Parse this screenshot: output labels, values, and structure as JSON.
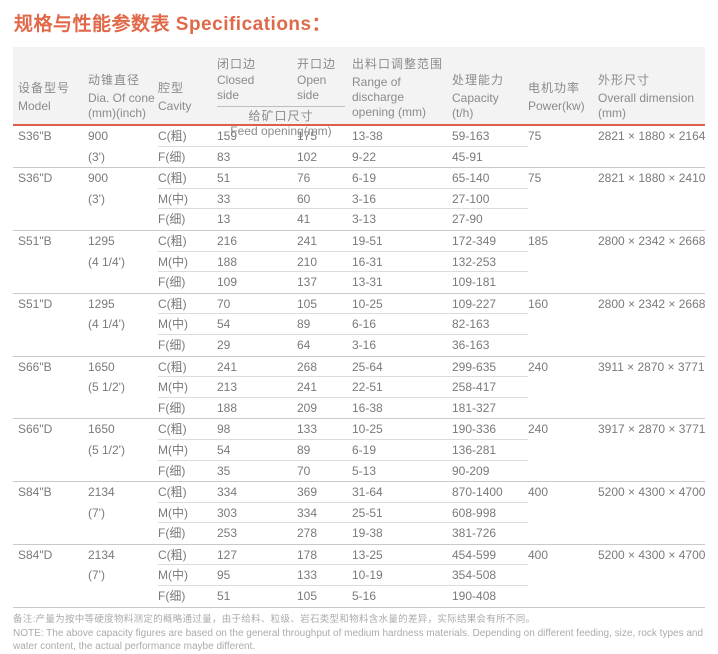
{
  "page": {
    "title": "规格与性能参数表 Specifications："
  },
  "colors": {
    "accent_orange": "#E0694A",
    "header_rule_orange": "#DC5F49",
    "header_bg": "#F3F3F3",
    "body_text": "#7A7A7A",
    "header_text": "#8B8B8B",
    "note_text": "#ABABAB"
  },
  "table": {
    "header": {
      "model_zh": "设备型号",
      "model_en": "Model",
      "cone_zh": "动锥直径",
      "cone_en": "Dia. Of cone (mm)(inch)",
      "cavity_zh": "腔型",
      "cavity_en": "Cavity",
      "closed_zh": "闭口边",
      "closed_en": "Closed side",
      "open_zh": "开口边",
      "open_en": "Open side",
      "feed_zh": "给矿口尺寸",
      "feed_en": "Feed opening(mm)",
      "discharge_zh": "出料口调整范围",
      "discharge_en": "Range of discharge opening (mm)",
      "capacity_zh": "处理能力",
      "capacity_en": "Capacity (t/h)",
      "power_zh": "电机功率",
      "power_en": "Power(kw)",
      "dimension_zh": "外形尺寸",
      "dimension_en": "Overall dimension (mm)"
    },
    "groups": [
      {
        "model": "S36\"B",
        "cone_mm": "900",
        "cone_inch": "(3')",
        "power": "75",
        "dimension": "2821 × 1880 × 2164",
        "rows": [
          {
            "cavity": "C(粗)",
            "closed": "159",
            "open": "175",
            "range": "13-38",
            "capacity": "59-163"
          },
          {
            "cavity": "F(细)",
            "closed": "83",
            "open": "102",
            "range": "9-22",
            "capacity": "45-91"
          }
        ]
      },
      {
        "model": "S36\"D",
        "cone_mm": "900",
        "cone_inch": "(3')",
        "power": "75",
        "dimension": "2821 × 1880 × 2410",
        "rows": [
          {
            "cavity": "C(粗)",
            "closed": "51",
            "open": "76",
            "range": "6-19",
            "capacity": "65-140"
          },
          {
            "cavity": "M(中)",
            "closed": "33",
            "open": "60",
            "range": "3-16",
            "capacity": "27-100"
          },
          {
            "cavity": "F(细)",
            "closed": "13",
            "open": "41",
            "range": "3-13",
            "capacity": "27-90"
          }
        ]
      },
      {
        "model": "S51\"B",
        "cone_mm": "1295",
        "cone_inch": "(4 1/4')",
        "power": "185",
        "dimension": "2800 × 2342 × 2668",
        "rows": [
          {
            "cavity": "C(粗)",
            "closed": "216",
            "open": "241",
            "range": "19-51",
            "capacity": "172-349"
          },
          {
            "cavity": "M(中)",
            "closed": "188",
            "open": "210",
            "range": "16-31",
            "capacity": "132-253"
          },
          {
            "cavity": "F(细)",
            "closed": "109",
            "open": "137",
            "range": "13-31",
            "capacity": "109-181"
          }
        ]
      },
      {
        "model": "S51\"D",
        "cone_mm": "1295",
        "cone_inch": "(4 1/4')",
        "power": "160",
        "dimension": "2800 × 2342 × 2668",
        "rows": [
          {
            "cavity": "C(粗)",
            "closed": "70",
            "open": "105",
            "range": "10-25",
            "capacity": "109-227"
          },
          {
            "cavity": "M(中)",
            "closed": "54",
            "open": "89",
            "range": "6-16",
            "capacity": "82-163"
          },
          {
            "cavity": "F(细)",
            "closed": "29",
            "open": "64",
            "range": "3-16",
            "capacity": "36-163"
          }
        ]
      },
      {
        "model": "S66\"B",
        "cone_mm": "1650",
        "cone_inch": "(5 1/2')",
        "power": "240",
        "dimension": "3911 × 2870 × 3771",
        "rows": [
          {
            "cavity": "C(粗)",
            "closed": "241",
            "open": "268",
            "range": "25-64",
            "capacity": "299-635"
          },
          {
            "cavity": "M(中)",
            "closed": "213",
            "open": "241",
            "range": "22-51",
            "capacity": "258-417"
          },
          {
            "cavity": "F(细)",
            "closed": "188",
            "open": "209",
            "range": "16-38",
            "capacity": "181-327"
          }
        ]
      },
      {
        "model": "S66\"D",
        "cone_mm": "1650",
        "cone_inch": "(5 1/2')",
        "power": "240",
        "dimension": "3917 × 2870 × 3771",
        "rows": [
          {
            "cavity": "C(粗)",
            "closed": "98",
            "open": "133",
            "range": "10-25",
            "capacity": "190-336"
          },
          {
            "cavity": "M(中)",
            "closed": "54",
            "open": "89",
            "range": "6-19",
            "capacity": "136-281"
          },
          {
            "cavity": "F(细)",
            "closed": "35",
            "open": "70",
            "range": "5-13",
            "capacity": "90-209"
          }
        ]
      },
      {
        "model": "S84\"B",
        "cone_mm": "2134",
        "cone_inch": "(7')",
        "power": "400",
        "dimension": "5200 × 4300 × 4700",
        "rows": [
          {
            "cavity": "C(粗)",
            "closed": "334",
            "open": "369",
            "range": "31-64",
            "capacity": "870-1400"
          },
          {
            "cavity": "M(中)",
            "closed": "303",
            "open": "334",
            "range": "25-51",
            "capacity": "608-998"
          },
          {
            "cavity": "F(细)",
            "closed": "253",
            "open": "278",
            "range": "19-38",
            "capacity": "381-726"
          }
        ]
      },
      {
        "model": "S84\"D",
        "cone_mm": "2134",
        "cone_inch": "(7')",
        "power": "400",
        "dimension": "5200 × 4300 × 4700",
        "rows": [
          {
            "cavity": "C(粗)",
            "closed": "127",
            "open": "178",
            "range": "13-25",
            "capacity": "454-599"
          },
          {
            "cavity": "M(中)",
            "closed": "95",
            "open": "133",
            "range": "10-19",
            "capacity": "354-508"
          },
          {
            "cavity": "F(细)",
            "closed": "51",
            "open": "105",
            "range": "5-16",
            "capacity": "190-408"
          }
        ]
      }
    ]
  },
  "notes": {
    "zh": "备注:产量为按中等硬度物料测定的概略通过量，由于给料、粒级、岩石类型和物料含水量的差异，实际结果会有所不同。",
    "en": "NOTE: The above capacity figures are based on the general throughput of medium hardness materials. Depending on different feeding, size, rock types and water content, the actual performance maybe different."
  }
}
